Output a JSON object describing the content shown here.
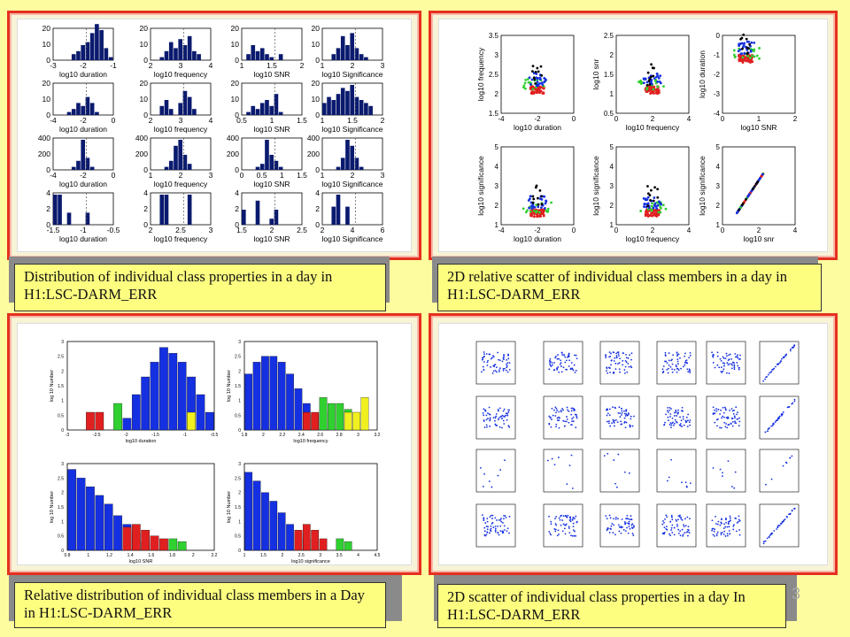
{
  "captions": {
    "top_left": "Distribution of individual class properties in a day in H1:LSC-DARM_ERR",
    "top_right": "2D relative scatter of individual class members in a day in H1:LSC-DARM_ERR",
    "bottom_left": "Relative distribution of individual class members in a Day in H1:LSC-DARM_ERR",
    "bottom_right": "2D scatter of individual class properties in a day In H1:LSC-DARM_ERR"
  },
  "page_number": "3",
  "colors": {
    "bar_navy": "#0a1a6e",
    "bar_blue": "#1530e0",
    "red": "#e02020",
    "green": "#30d030",
    "yellow": "#f0f020",
    "black": "#000000",
    "frame_red": "#e53020"
  },
  "hist_grid": {
    "xlabels": [
      "log10 duration",
      "log10 frequency",
      "log10 SNR",
      "log10 Significance"
    ],
    "rows": [
      {
        "yticks": [
          "0",
          "10",
          "20"
        ],
        "xticks": [
          [
            "-3",
            "-2",
            "-1"
          ],
          [
            "2",
            "3",
            "4"
          ],
          [
            "1",
            "1.5",
            "2"
          ],
          [
            "1",
            "2",
            "3"
          ]
        ]
      },
      {
        "yticks": [
          "0",
          "10",
          "20"
        ],
        "xticks": [
          [
            "-4",
            "-2",
            "0"
          ],
          [
            "2",
            "3",
            "4"
          ],
          [
            "0.5",
            "1",
            "1.5"
          ],
          [
            "1",
            "1.5",
            "2"
          ]
        ]
      },
      {
        "yticks": [
          "0",
          "200",
          "400"
        ],
        "xticks": [
          [
            "-4",
            "-2",
            "0"
          ],
          [
            "1",
            "2",
            "3"
          ],
          [
            "0",
            "0.5",
            "1",
            "1.5"
          ],
          [
            "1",
            "2",
            "3"
          ]
        ]
      },
      {
        "yticks": [
          "0",
          "2",
          "4"
        ],
        "xticks": [
          [
            "-1.5",
            "-1",
            "-0.5"
          ],
          [
            "2",
            "2.5",
            "3"
          ],
          [
            "1.5",
            "2",
            "2.5"
          ],
          [
            "2",
            "4",
            "6"
          ]
        ]
      }
    ]
  },
  "scatter_grid": {
    "row1": {
      "ylabels": [
        "log10 frequency",
        "log10 snr",
        "log10 duration"
      ],
      "xlabels": [
        "log10 duration",
        "log10 frequency",
        "log10 SNR"
      ]
    },
    "row2": {
      "ylabels": [
        "log10 significance",
        "log10 significance",
        "log10 significance"
      ],
      "xlabels": [
        "log10 duration",
        "log10 frequency",
        "log10 snr"
      ]
    }
  },
  "rel_hist": {
    "ylabel": "log 10 Number",
    "plots": [
      {
        "xlabel": "log10 duration",
        "xticks": [
          "-3",
          "-2.5",
          "-2",
          "-1.5",
          "-1",
          "-0.5"
        ]
      },
      {
        "xlabel": "log10 frequency",
        "xticks": [
          "1.8",
          "2",
          "2.2",
          "2.4",
          "2.6",
          "2.8",
          "3",
          "3.2"
        ]
      },
      {
        "xlabel": "log10 SNR",
        "xticks": [
          "0.8",
          "1",
          "1.2",
          "1.4",
          "1.6",
          "1.8",
          "2",
          "2.2"
        ]
      },
      {
        "xlabel": "log10 significance",
        "xticks": [
          "1",
          "1.5",
          "2",
          "2.5",
          "3",
          "3.5",
          "4",
          "4.5"
        ]
      }
    ]
  }
}
